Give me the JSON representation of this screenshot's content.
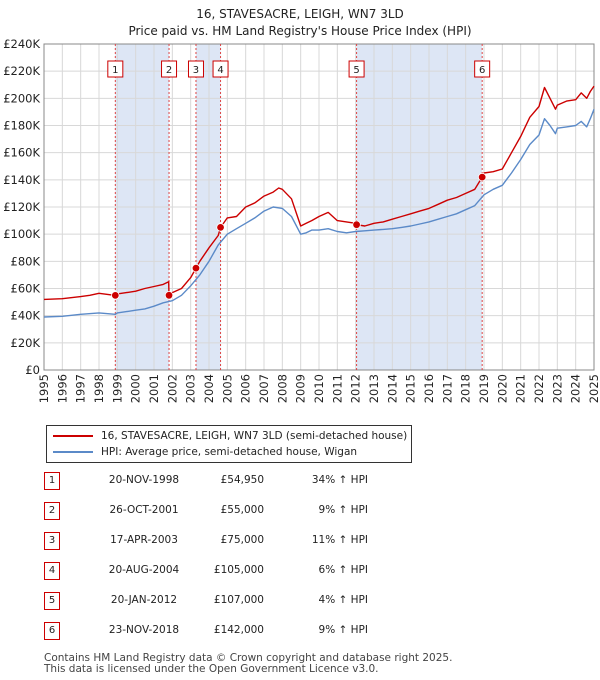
{
  "title_line1": "16, STAVESACRE, LEIGH, WN7 3LD",
  "title_line2": "Price paid vs. HM Land Registry's House Price Index (HPI)",
  "colors": {
    "property": "#cc0000",
    "hpi": "#5b8ac8",
    "shade": "#dde6f5",
    "grid": "#d8d8d8",
    "marker_line": "#dd4444"
  },
  "legend": {
    "property_label": "16, STAVESACRE, LEIGH, WN7 3LD (semi-detached house)",
    "hpi_label": "HPI: Average price, semi-detached house, Wigan"
  },
  "chart_data": {
    "type": "line",
    "title": "Price paid vs. HM Land Registry's House Price Index (HPI)",
    "xlabel": "",
    "ylabel": "",
    "xlim": [
      1995,
      2025
    ],
    "ylim": [
      0,
      240000
    ],
    "x_ticks": [
      "1995",
      "1996",
      "1997",
      "1998",
      "1999",
      "2000",
      "2001",
      "2002",
      "2003",
      "2004",
      "2005",
      "2006",
      "2007",
      "2008",
      "2009",
      "2010",
      "2011",
      "2012",
      "2013",
      "2014",
      "2015",
      "2016",
      "2017",
      "2018",
      "2019",
      "2020",
      "2021",
      "2022",
      "2023",
      "2024",
      "2025"
    ],
    "y_ticks": [
      "£0",
      "£20K",
      "£40K",
      "£60K",
      "£80K",
      "£100K",
      "£120K",
      "£140K",
      "£160K",
      "£180K",
      "£200K",
      "£220K",
      "£240K"
    ],
    "y_tick_values": [
      0,
      20000,
      40000,
      60000,
      80000,
      100000,
      120000,
      140000,
      160000,
      180000,
      200000,
      220000,
      240000
    ],
    "shaded_spans": [
      [
        1998.89,
        2001.82
      ],
      [
        2003.29,
        2004.63
      ],
      [
        2012.05,
        2018.9
      ]
    ],
    "series": [
      {
        "name": "16, STAVESACRE, LEIGH, WN7 3LD (semi-detached house)",
        "x": [
          1995,
          1996,
          1997,
          1997.5,
          1998,
          1998.89,
          1999,
          1999.5,
          2000,
          2000.5,
          2001,
          2001.5,
          2001.8,
          2001.82,
          2002,
          2002.5,
          2003,
          2003.29,
          2003.5,
          2004,
          2004.5,
          2004.63,
          2005,
          2005.5,
          2006,
          2006.5,
          2007,
          2007.5,
          2007.8,
          2008,
          2008.5,
          2009,
          2009.3,
          2009.6,
          2010,
          2010.5,
          2011,
          2011.5,
          2012,
          2012.05,
          2012.5,
          2013,
          2013.5,
          2014,
          2014.5,
          2015,
          2015.5,
          2016,
          2016.5,
          2017,
          2017.5,
          2018,
          2018.5,
          2018.9,
          2019,
          2019.5,
          2020,
          2020.5,
          2021,
          2021.5,
          2022,
          2022.3,
          2022.6,
          2022.9,
          2023,
          2023.5,
          2024,
          2024.3,
          2024.6,
          2024.8,
          2025
        ],
        "values": [
          52000,
          52500,
          54000,
          55000,
          56500,
          54950,
          56000,
          57000,
          58000,
          60000,
          61500,
          63000,
          65000,
          55000,
          57000,
          60000,
          68000,
          75000,
          80000,
          90000,
          99000,
          105000,
          112000,
          113000,
          120000,
          123000,
          128000,
          131000,
          134000,
          133000,
          126000,
          106000,
          108000,
          110000,
          113000,
          116000,
          110000,
          109000,
          108000,
          107000,
          106000,
          108000,
          109000,
          111000,
          113000,
          115000,
          117000,
          119000,
          122000,
          125000,
          127000,
          130000,
          133000,
          142000,
          145000,
          146000,
          148000,
          160000,
          172000,
          186000,
          194000,
          208000,
          200000,
          192000,
          195000,
          198000,
          199000,
          204000,
          200000,
          205000,
          209000
        ]
      },
      {
        "name": "HPI: Average price, semi-detached house, Wigan",
        "x": [
          1995,
          1996,
          1997,
          1998,
          1998.89,
          1999,
          1999.5,
          2000,
          2000.5,
          2001,
          2001.5,
          2002,
          2002.5,
          2003,
          2003.5,
          2004,
          2004.5,
          2005,
          2005.5,
          2006,
          2006.5,
          2007,
          2007.5,
          2008,
          2008.5,
          2009,
          2009.3,
          2009.6,
          2010,
          2010.5,
          2011,
          2011.5,
          2012,
          2012.5,
          2013,
          2013.5,
          2014,
          2014.5,
          2015,
          2015.5,
          2016,
          2016.5,
          2017,
          2017.5,
          2018,
          2018.5,
          2019,
          2019.5,
          2020,
          2020.5,
          2021,
          2021.5,
          2022,
          2022.3,
          2022.6,
          2022.9,
          2023,
          2023.5,
          2024,
          2024.3,
          2024.6,
          2024.8,
          2025
        ],
        "values": [
          39000,
          39500,
          41000,
          42000,
          41000,
          42000,
          43000,
          44000,
          45000,
          47000,
          49500,
          51000,
          55000,
          62000,
          70000,
          80000,
          92000,
          100000,
          104000,
          108000,
          112000,
          117000,
          120000,
          119000,
          113000,
          100000,
          101000,
          103000,
          103000,
          104000,
          102000,
          101000,
          102000,
          102500,
          103000,
          103500,
          104000,
          105000,
          106000,
          107500,
          109000,
          111000,
          113000,
          115000,
          118000,
          121000,
          129000,
          133000,
          136000,
          145000,
          155000,
          166000,
          173000,
          185000,
          180000,
          174000,
          178000,
          179000,
          180000,
          183000,
          179000,
          185000,
          192000
        ]
      }
    ],
    "sales": [
      {
        "num": "1",
        "x": 1998.89,
        "price": 54950
      },
      {
        "num": "2",
        "x": 2001.82,
        "price": 55000
      },
      {
        "num": "3",
        "x": 2003.29,
        "price": 75000
      },
      {
        "num": "4",
        "x": 2004.63,
        "price": 105000
      },
      {
        "num": "5",
        "x": 2012.05,
        "price": 107000
      },
      {
        "num": "6",
        "x": 2018.9,
        "price": 142000
      }
    ]
  },
  "transactions": [
    {
      "num": "1",
      "date": "20-NOV-1998",
      "price": "£54,950",
      "hpi": "34% ↑ HPI"
    },
    {
      "num": "2",
      "date": "26-OCT-2001",
      "price": "£55,000",
      "hpi": "9% ↑ HPI"
    },
    {
      "num": "3",
      "date": "17-APR-2003",
      "price": "£75,000",
      "hpi": "11% ↑ HPI"
    },
    {
      "num": "4",
      "date": "20-AUG-2004",
      "price": "£105,000",
      "hpi": "6% ↑ HPI"
    },
    {
      "num": "5",
      "date": "20-JAN-2012",
      "price": "£107,000",
      "hpi": "4% ↑ HPI"
    },
    {
      "num": "6",
      "date": "23-NOV-2018",
      "price": "£142,000",
      "hpi": "9% ↑ HPI"
    }
  ],
  "footer_line1": "Contains HM Land Registry data © Crown copyright and database right 2025.",
  "footer_line2": "This data is licensed under the Open Government Licence v3.0."
}
